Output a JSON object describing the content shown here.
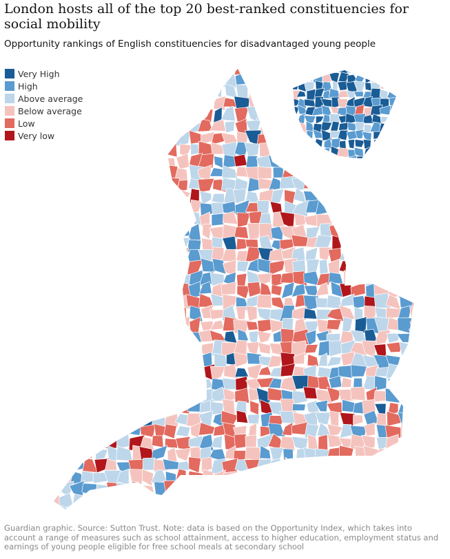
{
  "header": {
    "title": "London hosts all of the top 20 best-ranked constituencies for social mobility",
    "subtitle": "Opportunity rankings of English constituencies for disadvantaged young people"
  },
  "legend": [
    {
      "label": "Very High",
      "color": "#1a5c96"
    },
    {
      "label": "High",
      "color": "#5a9bd0"
    },
    {
      "label": "Above average",
      "color": "#bdd6ea"
    },
    {
      "label": "Below average",
      "color": "#f5c3be"
    },
    {
      "label": "Low",
      "color": "#e26a5f"
    },
    {
      "label": "Very low",
      "color": "#b0161b"
    }
  ],
  "footer": {
    "source": "Guardian graphic. Source: Sutton Trust. Note: data is based on the Opportunity Index, which takes into account a range of measures such as school attainment, access to higher education, employment status and earnings of young people eligible for free school meals at secondary school"
  }
}
